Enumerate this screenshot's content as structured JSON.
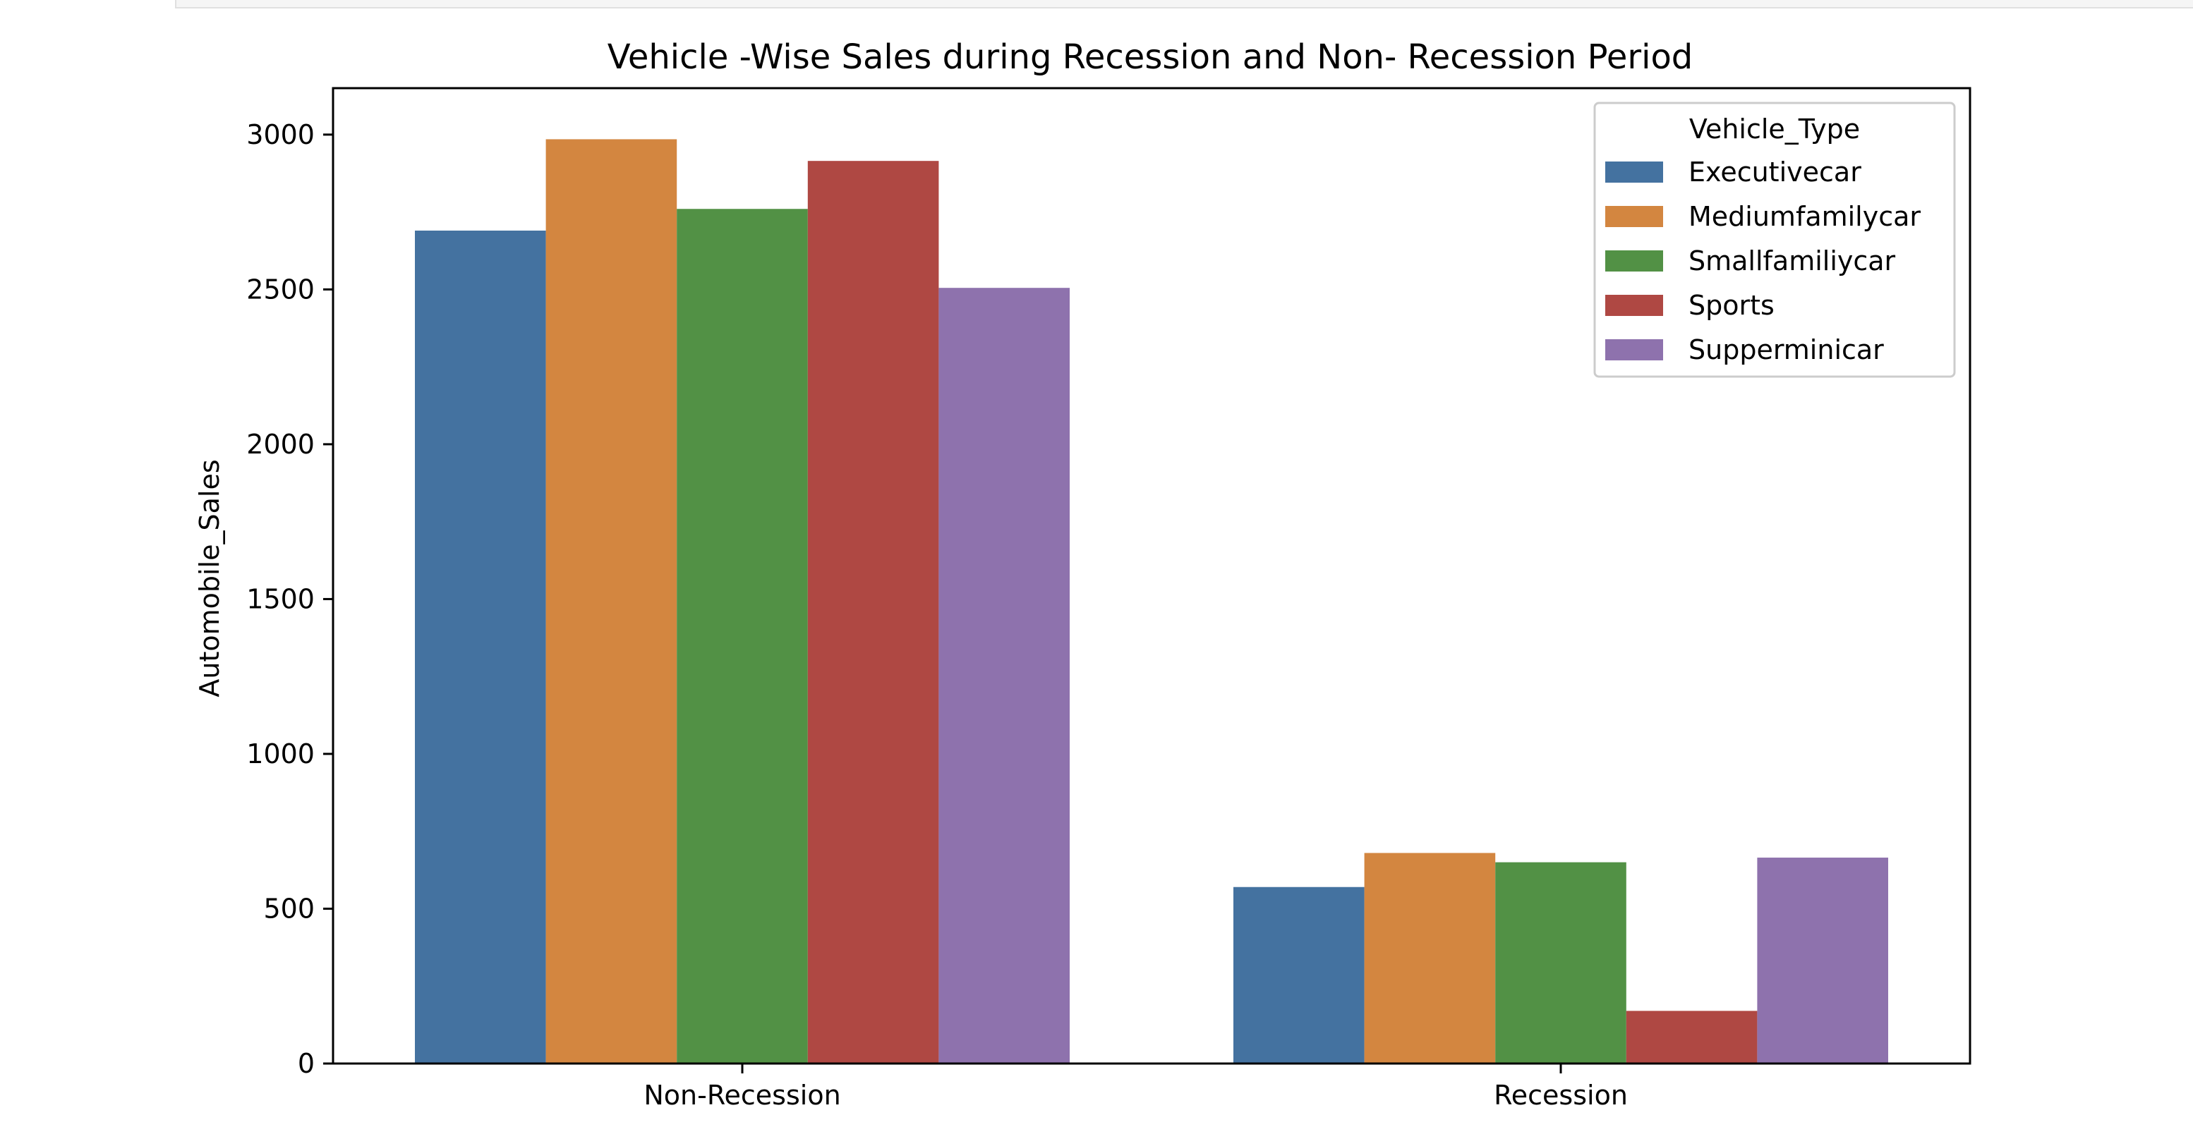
{
  "chart_data": {
    "type": "bar",
    "title": "Vehicle -Wise Sales during Recession and Non- Recession Period",
    "xlabel": "",
    "ylabel": "Automobile_Sales",
    "categories": [
      "Non-Recession",
      "Recession"
    ],
    "ylim": [
      0,
      3150
    ],
    "yticks": [
      0,
      500,
      1000,
      1500,
      2000,
      2500,
      3000
    ],
    "grid": false,
    "legend": {
      "title": "Vehicle_Type",
      "placement": "top-right"
    },
    "series": [
      {
        "name": "Executivecar",
        "color": "#4472a0",
        "values": [
          2690,
          570
        ]
      },
      {
        "name": "Mediumfamilycar",
        "color": "#d38640",
        "values": [
          2985,
          680
        ]
      },
      {
        "name": "Smallfamiliycar",
        "color": "#529145",
        "values": [
          2760,
          650
        ]
      },
      {
        "name": "Sports",
        "color": "#af4843",
        "values": [
          2915,
          170
        ]
      },
      {
        "name": "Supperminicar",
        "color": "#8e72ad",
        "values": [
          2505,
          665
        ]
      }
    ]
  }
}
